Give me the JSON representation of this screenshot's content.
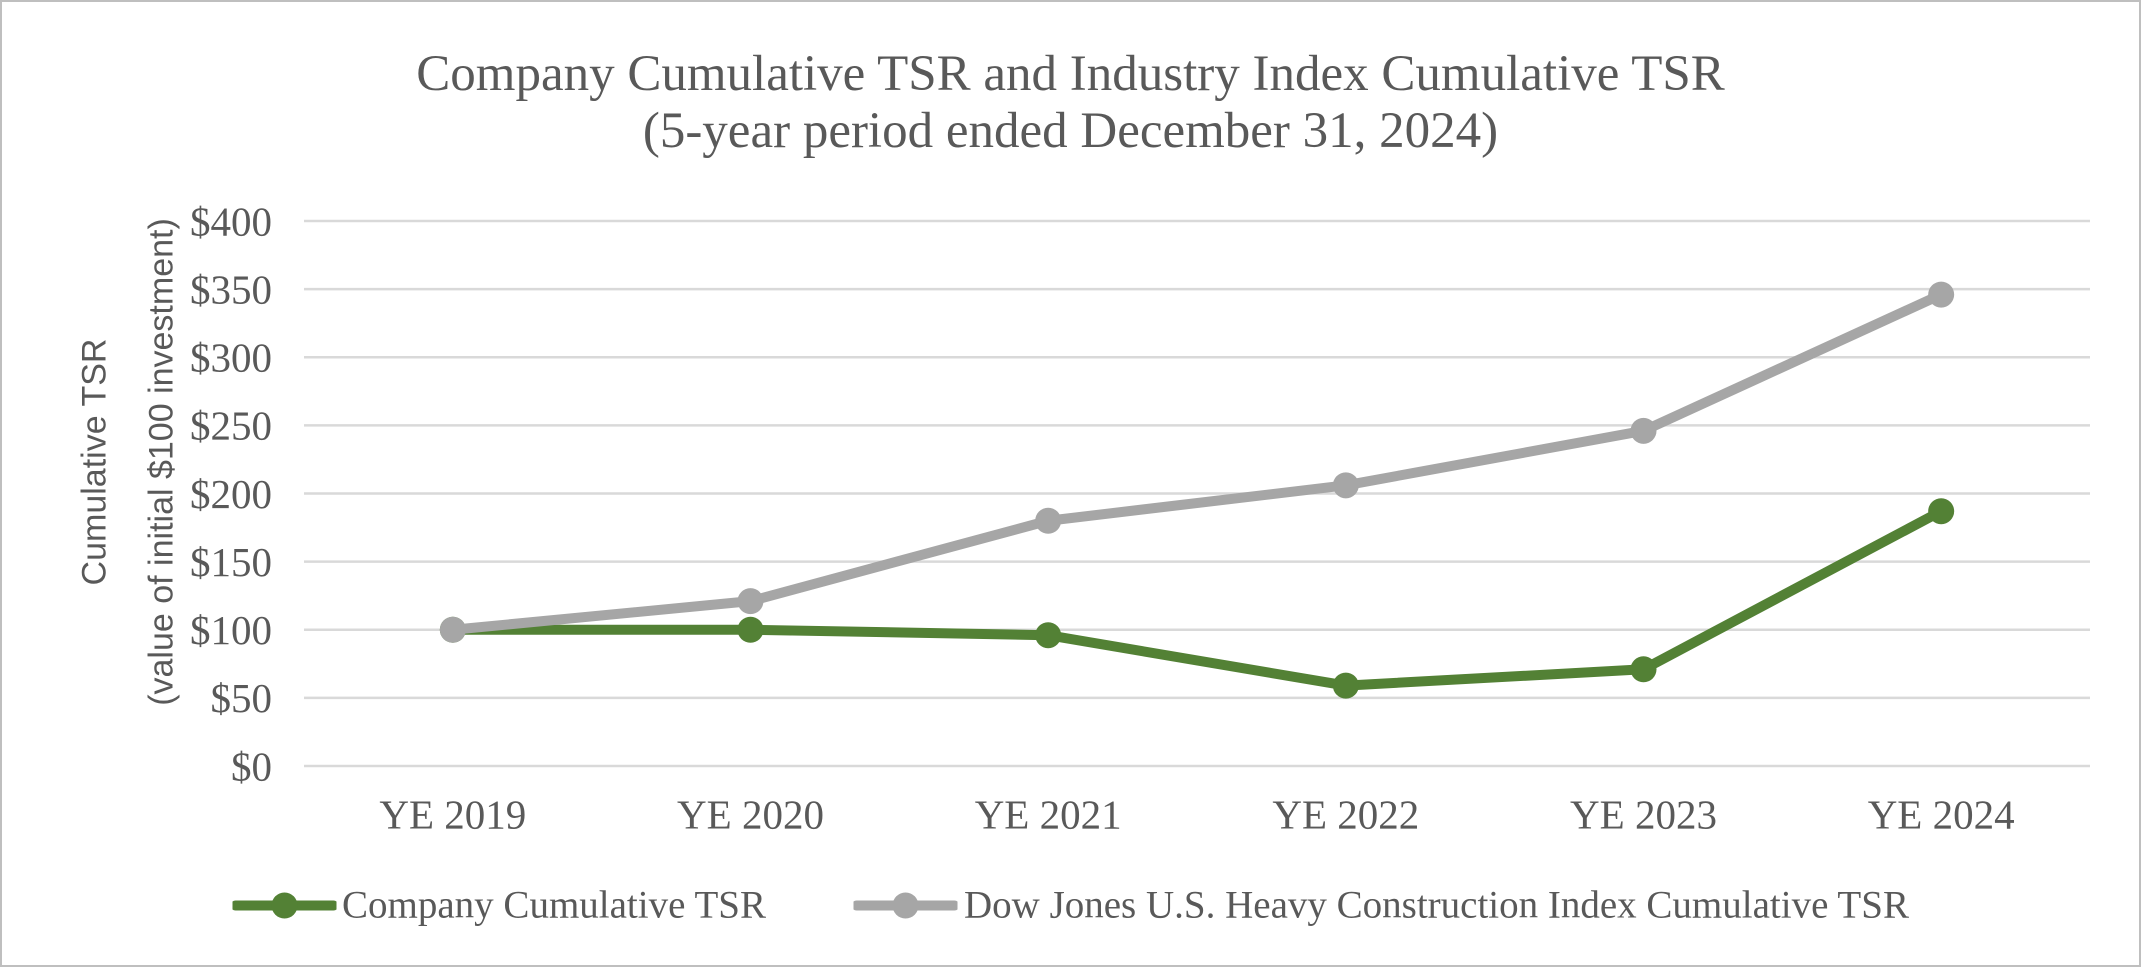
{
  "chart_data": {
    "type": "line",
    "title": "Company Cumulative TSR and Industry Index Cumulative TSR",
    "subtitle": "(5-year period ended December 31, 2024)",
    "ylabel_line1": "Cumulative TSR",
    "ylabel_line2": "(value of initial $100 investment)",
    "categories": [
      "YE 2019",
      "YE 2020",
      "YE 2021",
      "YE 2022",
      "YE 2023",
      "YE 2024"
    ],
    "series": [
      {
        "name": "Company Cumulative TSR",
        "color": "#538135",
        "values": [
          100,
          100,
          96,
          59,
          71,
          187
        ]
      },
      {
        "name": "Dow Jones U.S. Heavy Construction Index Cumulative TSR",
        "color": "#a6a6a6",
        "values": [
          100,
          121,
          180,
          206,
          246,
          346
        ]
      }
    ],
    "y_axis": {
      "min": 0,
      "max": 400,
      "step": 50,
      "tick_prefix": "$"
    },
    "x_axis_tick_labels": [
      "YE 2019",
      "YE 2020",
      "YE 2021",
      "YE 2022",
      "YE 2023",
      "YE 2024"
    ],
    "y_axis_tick_labels": [
      "$0",
      "$50",
      "$100",
      "$150",
      "$200",
      "$250",
      "$300",
      "$350",
      "$400"
    ],
    "grid": true,
    "legend_position": "bottom"
  },
  "colors": {
    "company_series": "#538135",
    "index_series": "#a6a6a6",
    "text": "#595959",
    "gridline": "#d9d9d9",
    "frame_border": "#bfbfbf"
  }
}
